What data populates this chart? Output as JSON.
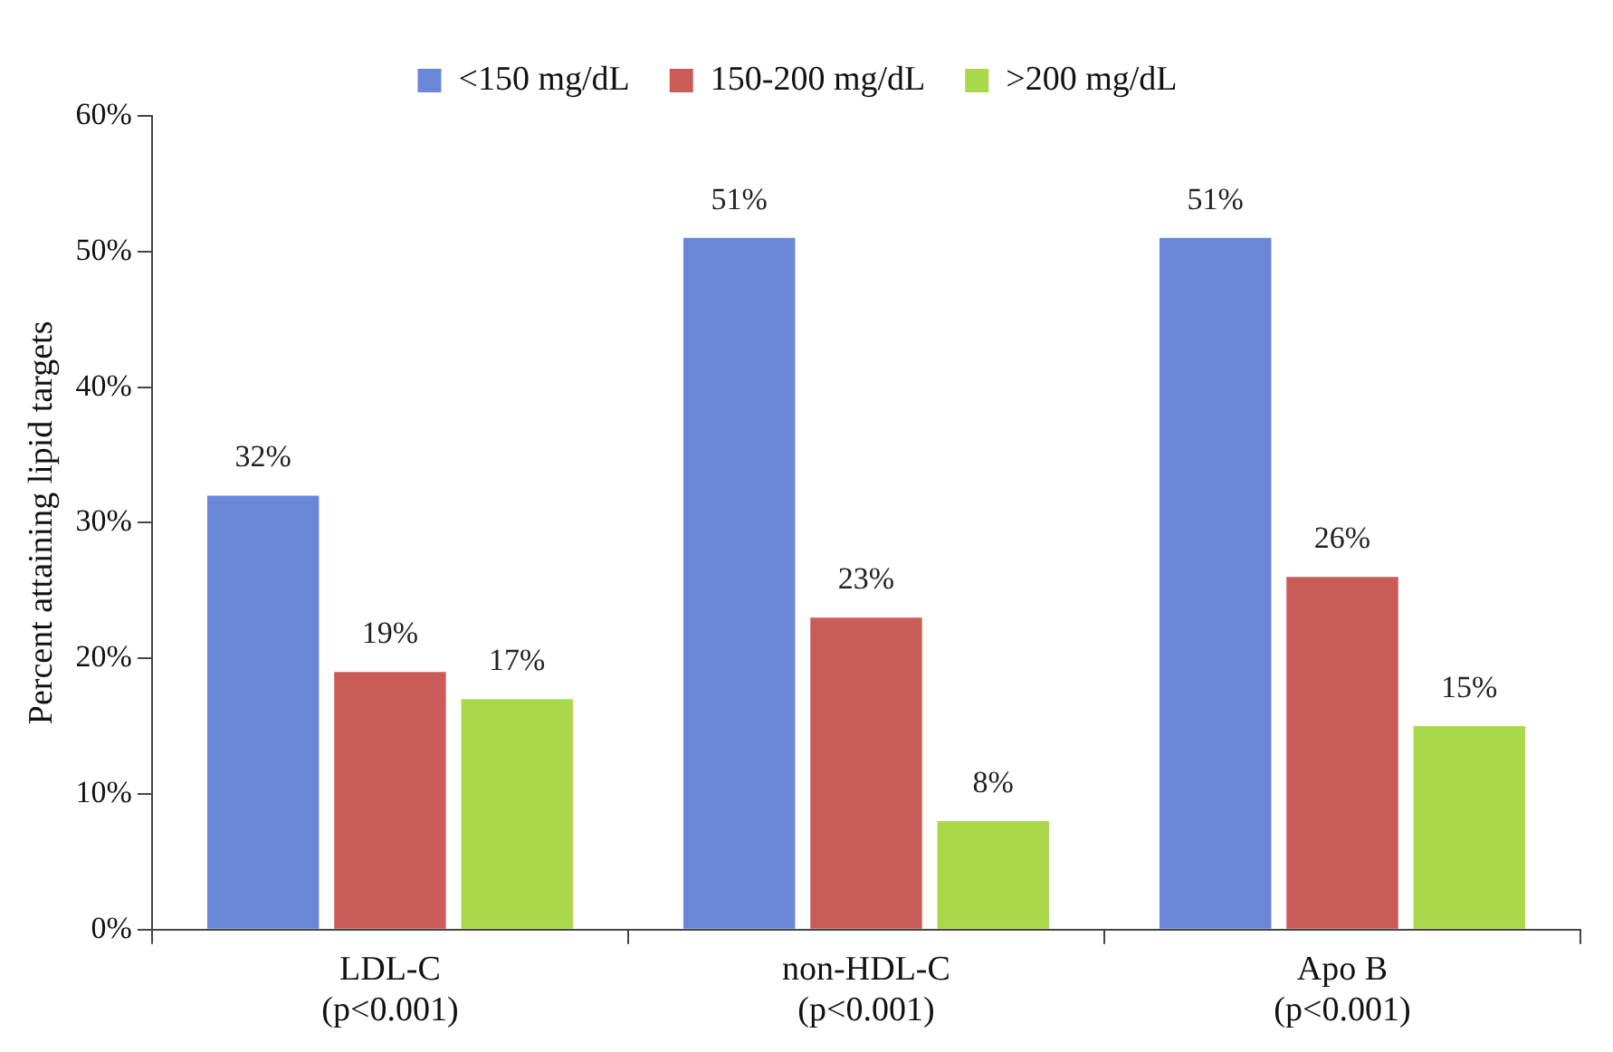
{
  "chart_data": {
    "type": "bar",
    "ylabel": "Percent attaining lipid targets",
    "categories": [
      "LDL-C\n(p<0.001)",
      "non-HDL-C\n(p<0.001)",
      "Apo B\n(p<0.001)"
    ],
    "series": [
      {
        "name": "<150 mg/dL",
        "color": "#6a86d8",
        "values": [
          32,
          51,
          51
        ],
        "value_labels": [
          "32%",
          "51%",
          "51%"
        ]
      },
      {
        "name": "150-200 mg/dL",
        "color": "#c95b58",
        "values": [
          19,
          23,
          26
        ],
        "value_labels": [
          "19%",
          "23%",
          "26%"
        ]
      },
      {
        "name": ">200 mg/dL",
        "color": "#a9d94a",
        "values": [
          17,
          8,
          15
        ],
        "value_labels": [
          "17%",
          "8%",
          "15%"
        ]
      }
    ],
    "ylim": [
      0,
      60
    ],
    "yticks": [
      {
        "value": 0,
        "label": "0%"
      },
      {
        "value": 10,
        "label": "10%"
      },
      {
        "value": 20,
        "label": "20%"
      },
      {
        "value": 30,
        "label": "30%"
      },
      {
        "value": 40,
        "label": "40%"
      },
      {
        "value": 50,
        "label": "50%"
      },
      {
        "value": 60,
        "label": "60%"
      }
    ],
    "grid": false,
    "legend": "top"
  }
}
